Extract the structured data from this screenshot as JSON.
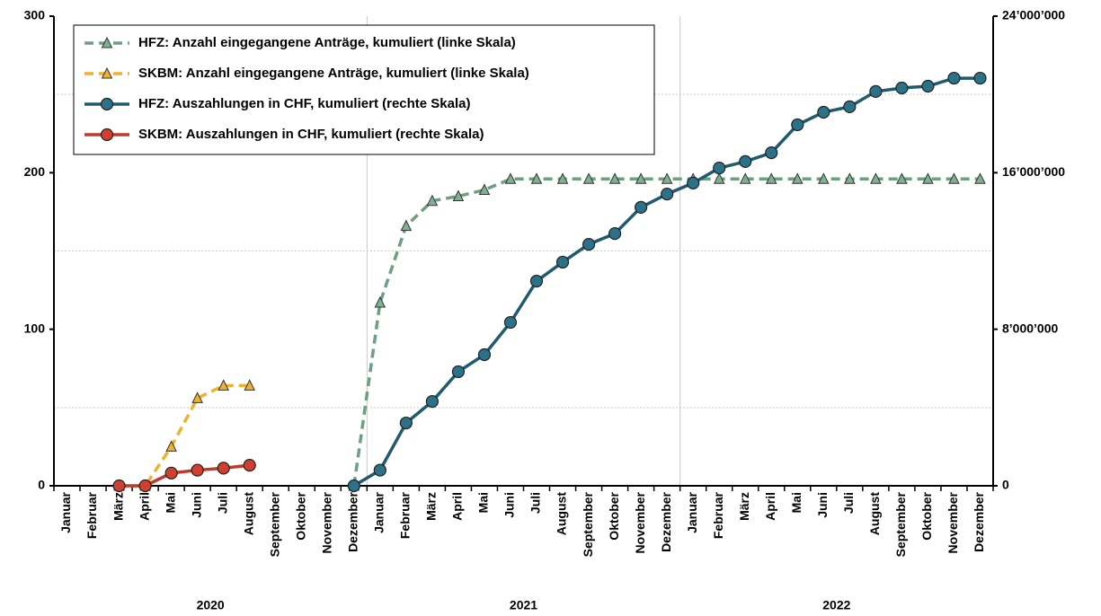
{
  "chart_data": {
    "type": "line",
    "categories": [
      "Januar",
      "Februar",
      "März",
      "April",
      "Mai",
      "Juni",
      "Juli",
      "August",
      "September",
      "Oktober",
      "November",
      "Dezember",
      "Januar",
      "Februar",
      "März",
      "April",
      "Mai",
      "Juni",
      "Juli",
      "August",
      "September",
      "Oktober",
      "November",
      "Dezember",
      "Januar",
      "Februar",
      "März",
      "April",
      "Mai",
      "Juni",
      "Juli",
      "August",
      "September",
      "Oktober",
      "November",
      "Dezember"
    ],
    "year_groups": [
      "2020",
      "2021",
      "2022"
    ],
    "ylim": [
      0,
      300
    ],
    "yticks": [
      0,
      100,
      200,
      300
    ],
    "yminor_grid": [
      50,
      150,
      250
    ],
    "y2lim": [
      0,
      24000000
    ],
    "y2ticks": [
      {
        "value": 0,
        "label": "0"
      },
      {
        "value": 8000000,
        "label": "8’000’000"
      },
      {
        "value": 16000000,
        "label": "16’000’000"
      },
      {
        "value": 24000000,
        "label": "24’000’000"
      }
    ],
    "legend": "upper left",
    "series": [
      {
        "name": "HFZ: Anzahl eingegangene Anträge, kumuliert (linke Skala)",
        "color": "#6d9f80",
        "marker_fill": "#7fb08f",
        "marker": "triangle",
        "dashed": true,
        "axis": "y",
        "values": [
          null,
          null,
          null,
          null,
          null,
          null,
          null,
          null,
          null,
          null,
          null,
          0,
          117,
          166,
          182,
          185,
          189,
          196,
          196,
          196,
          196,
          196,
          196,
          196,
          196,
          196,
          196,
          196,
          196,
          196,
          196,
          196,
          196,
          196,
          196,
          196
        ]
      },
      {
        "name": "SKBM: Anzahl eingegangene Anträge, kumuliert (linke Skala)",
        "color": "#f0b030",
        "marker_fill": "#f0b030",
        "marker": "triangle",
        "dashed": true,
        "axis": "y",
        "values": [
          null,
          null,
          0,
          0,
          25,
          56,
          64,
          64,
          null,
          null,
          null,
          null,
          null,
          null,
          null,
          null,
          null,
          null,
          null,
          null,
          null,
          null,
          null,
          null,
          null,
          null,
          null,
          null,
          null,
          null,
          null,
          null,
          null,
          null,
          null,
          null
        ]
      },
      {
        "name": "HFZ: Auszahlungen in CHF, kumuliert (rechte Skala)",
        "color": "#1f5a6e",
        "marker_fill": "#2b7188",
        "marker": "circle",
        "dashed": false,
        "axis": "y2",
        "values": [
          null,
          null,
          null,
          null,
          null,
          null,
          null,
          null,
          null,
          null,
          null,
          0,
          800000,
          3210000,
          4310000,
          5830000,
          6700000,
          8350000,
          10460000,
          11430000,
          12340000,
          12890000,
          14230000,
          14910000,
          15470000,
          16240000,
          16570000,
          17020000,
          18450000,
          19090000,
          19370000,
          20150000,
          20330000,
          20420000,
          20830000,
          20830000
        ]
      },
      {
        "name": "SKBM: Auszahlungen in CHF, kumuliert (rechte Skala)",
        "color": "#c0392b",
        "marker_fill": "#d04030",
        "marker": "circle",
        "dashed": false,
        "axis": "y2",
        "values": [
          null,
          null,
          0,
          0,
          650000,
          800000,
          900000,
          1050000,
          null,
          null,
          null,
          null,
          null,
          null,
          null,
          null,
          null,
          null,
          null,
          null,
          null,
          null,
          null,
          null,
          null,
          null,
          null,
          null,
          null,
          null,
          null,
          null,
          null,
          null,
          null,
          null
        ]
      }
    ]
  }
}
